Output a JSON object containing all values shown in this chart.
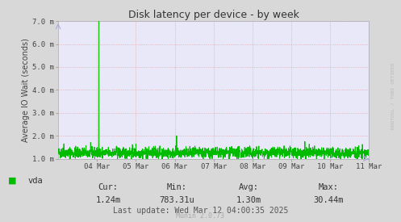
{
  "title": "Disk latency per device - by week",
  "ylabel": "Average IO Wait (seconds)",
  "bg_color": "#d8d8d8",
  "plot_bg_color": "#e8e8f8",
  "line_color": "#00bb00",
  "grid_color": "#dd9999",
  "ytick_labels": [
    "1.0 m",
    "2.0 m",
    "3.0 m",
    "4.0 m",
    "5.0 m",
    "6.0 m",
    "7.0 m"
  ],
  "ytick_values": [
    0.001,
    0.002,
    0.003,
    0.004,
    0.005,
    0.006,
    0.007
  ],
  "ymin": 0.001,
  "ymax": 0.007,
  "xtick_labels": [
    "04 Mar",
    "05 Mar",
    "06 Mar",
    "07 Mar",
    "08 Mar",
    "09 Mar",
    "10 Mar",
    "11 Mar"
  ],
  "legend_label": "vda",
  "legend_color": "#00bb00",
  "cur_label": "Cur:",
  "cur_val": "1.24m",
  "min_label": "Min:",
  "min_val": "783.31u",
  "avg_label": "Avg:",
  "avg_val": "1.30m",
  "max_label": "Max:",
  "max_val": "30.44m",
  "last_update": "Last update: Wed Mar 12 04:00:35 2025",
  "munin_label": "Munin 2.0.73",
  "watermark": "RRDTOOL / TOBI OETIKER",
  "num_points": 2000
}
